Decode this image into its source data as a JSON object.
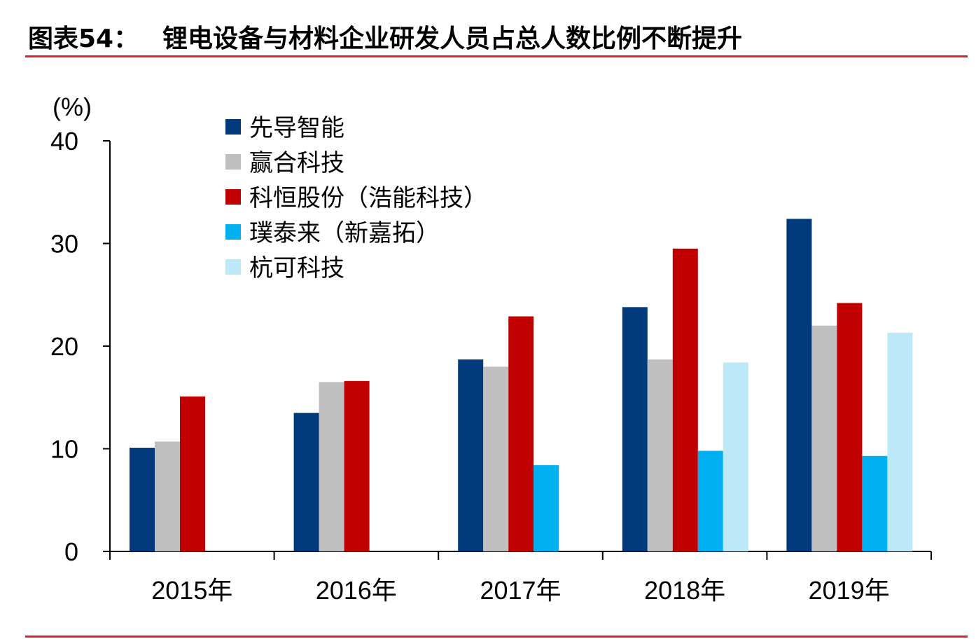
{
  "header": {
    "prefix": "图表54：",
    "title": "锂电设备与材料企业研发人员占总人数比例不断提升"
  },
  "colors": {
    "rule": "#d7262f",
    "series": [
      "#003a7d",
      "#bfbfbf",
      "#c00000",
      "#00b0f0",
      "#bde8f7"
    ]
  },
  "chart_data": {
    "type": "bar",
    "title": "锂电设备与材料企业研发人员占总人数比例不断提升",
    "ylabel": "(%)",
    "ylim": [
      0,
      40
    ],
    "yticks": [
      0,
      10,
      20,
      30,
      40
    ],
    "ytick_labels": [
      "0",
      "10",
      "20",
      "30",
      "40"
    ],
    "categories": [
      "2015年",
      "2016年",
      "2017年",
      "2018年",
      "2019年"
    ],
    "legend_position": "top-left",
    "grid": false,
    "series": [
      {
        "name": "先导智能",
        "values": [
          10.1,
          13.5,
          18.7,
          23.8,
          32.4
        ]
      },
      {
        "name": "赢合科技",
        "values": [
          10.7,
          16.5,
          18.0,
          18.7,
          22.0
        ]
      },
      {
        "name": "科恒股份（浩能科技）",
        "values": [
          15.1,
          16.6,
          22.9,
          29.5,
          24.2
        ]
      },
      {
        "name": "璞泰来（新嘉拓）",
        "values": [
          null,
          null,
          8.4,
          9.8,
          9.3
        ]
      },
      {
        "name": "杭可科技",
        "values": [
          null,
          null,
          null,
          18.4,
          21.3
        ]
      }
    ]
  }
}
